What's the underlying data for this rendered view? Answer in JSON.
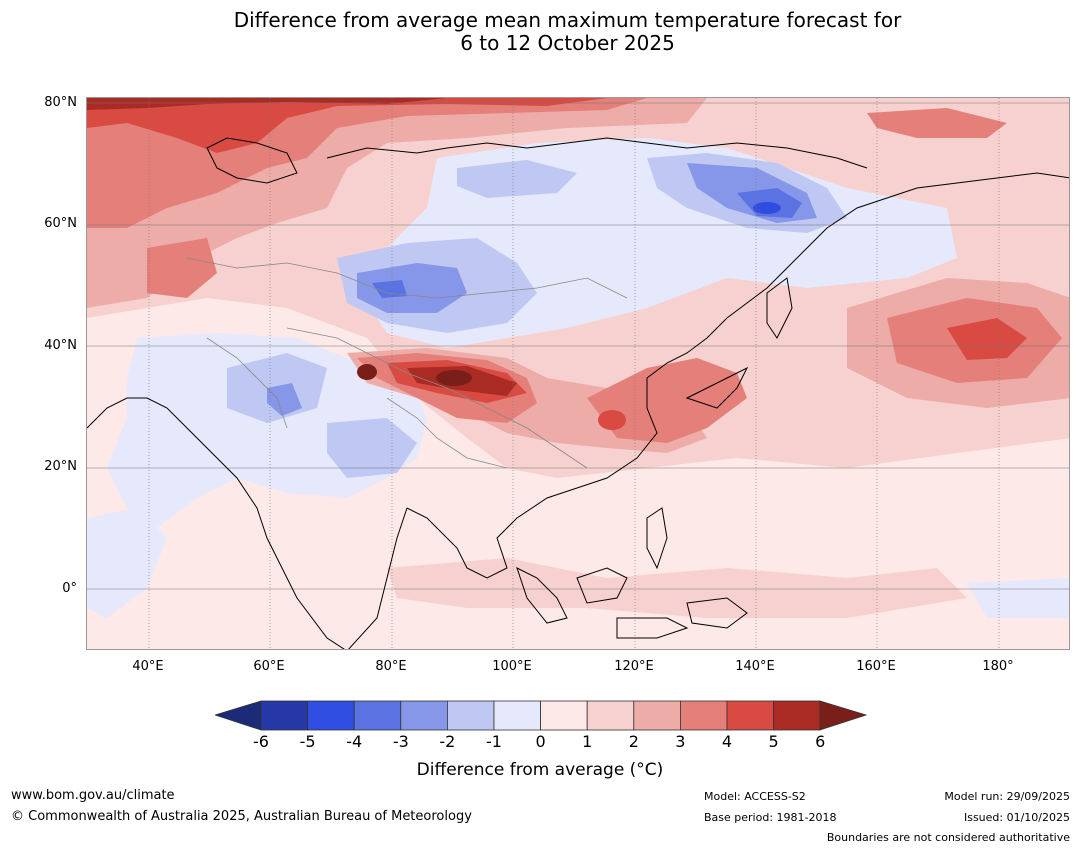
{
  "title": {
    "line1": "Difference from average mean maximum temperature forecast for",
    "line2": "6 to 12 October 2025"
  },
  "map": {
    "lat_labels": [
      "80°N",
      "60°N",
      "40°N",
      "20°N",
      "0°"
    ],
    "lon_labels": [
      "40°E",
      "60°E",
      "80°E",
      "100°E",
      "120°E",
      "140°E",
      "160°E",
      "180°"
    ]
  },
  "colorbar": {
    "ticks": [
      "-6",
      "-5",
      "-4",
      "-3",
      "-2",
      "-1",
      "0",
      "1",
      "2",
      "3",
      "4",
      "5",
      "6"
    ],
    "label": "Difference from average (°C)",
    "colors": [
      "#2637a8",
      "#2f4de0",
      "#5a72e2",
      "#8696e8",
      "#bfc7f3",
      "#e6e9fb",
      "#fde9e8",
      "#f6d1cf",
      "#edaca8",
      "#e47f7a",
      "#d84a42",
      "#a92b24"
    ],
    "extend_low_color": "#1c2b78",
    "extend_high_color": "#7a1e19"
  },
  "footer": {
    "website": "www.bom.gov.au/climate",
    "copyright": "© Commonwealth of Australia 2025, Australian Bureau of Meteorology",
    "model": "Model: ACCESS-S2",
    "base_period": "Base period: 1981-2018",
    "model_run": "Model run: 29/09/2025",
    "issued": "Issued: 01/10/2025",
    "disclaimer": "Boundaries are not considered authoritative"
  }
}
